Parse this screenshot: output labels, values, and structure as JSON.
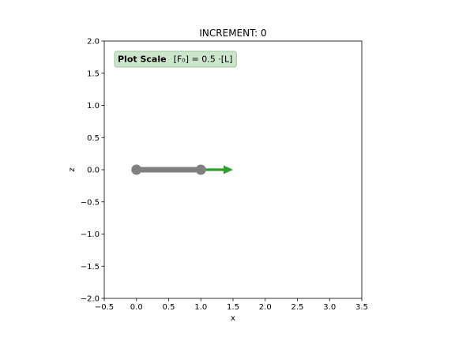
{
  "chart_data": {
    "type": "line",
    "title": "INCREMENT: 0",
    "xlabel": "x",
    "ylabel": "z",
    "xlim": [
      -0.5,
      3.5
    ],
    "ylim": [
      -2.0,
      2.0
    ],
    "x_ticks": [
      -0.5,
      0.0,
      0.5,
      1.0,
      1.5,
      2.0,
      2.5,
      3.0,
      3.5
    ],
    "x_tick_labels": [
      "−0.5",
      "0.0",
      "0.5",
      "1.0",
      "1.5",
      "2.0",
      "2.5",
      "3.0",
      "3.5"
    ],
    "y_ticks": [
      -2.0,
      -1.5,
      -1.0,
      -0.5,
      0.0,
      0.5,
      1.0,
      1.5,
      2.0
    ],
    "y_tick_labels": [
      "−2.0",
      "−1.5",
      "−1.0",
      "−0.5",
      "0.0",
      "0.5",
      "1.0",
      "1.5",
      "2.0"
    ],
    "grid": false,
    "element": {
      "x": [
        0.0,
        1.0
      ],
      "z": [
        0.0,
        0.0
      ],
      "color": "#808080"
    },
    "nodes": [
      {
        "x": 0.0,
        "z": 0.0
      },
      {
        "x": 1.0,
        "z": 0.0
      }
    ],
    "force_arrow": {
      "x0": 1.0,
      "z0": 0.0,
      "x1": 1.5,
      "z1": 0.0,
      "color": "#2ca02c"
    },
    "annotation": {
      "bold": "Plot Scale",
      "text": "[F₀] =  0.5 ·[L]",
      "box_fill": "#cde5cd",
      "box_edge": "#9cc79c",
      "placement": "top-left"
    }
  }
}
